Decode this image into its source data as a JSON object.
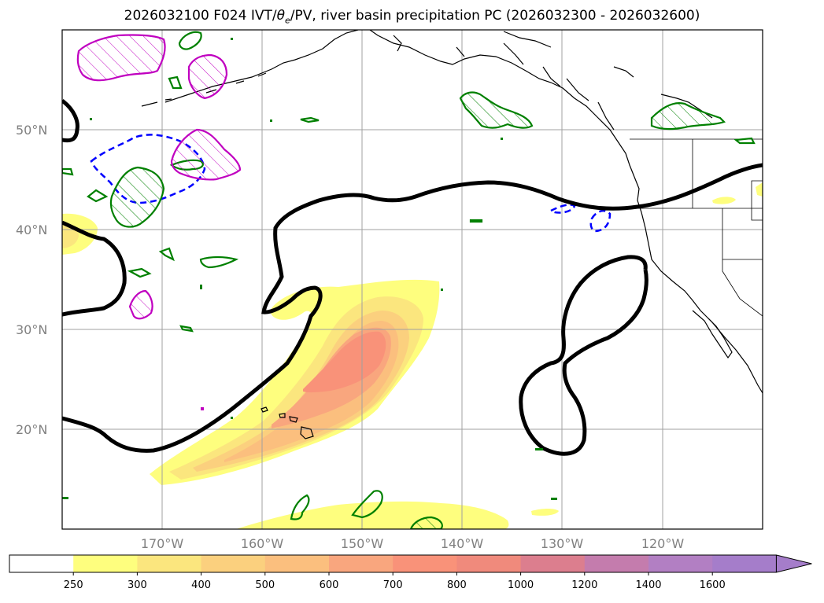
{
  "chart_data": {
    "type": "map",
    "title": "2026032100 F024 IVT/θe/PV, river basin precipitation PC (2026032300 - 2026032600)",
    "title_parts": {
      "prefix": "2026032100 F024 IVT/",
      "theta": "θ",
      "theta_sub": "e",
      "suffix": "/PV, river basin precipitation PC (2026032300 - 2026032600)"
    },
    "lon_range": [
      -180,
      -110
    ],
    "lat_range": [
      10,
      60
    ],
    "lat_ticks": [
      {
        "value": 50,
        "label": "50°N"
      },
      {
        "value": 40,
        "label": "40°N"
      },
      {
        "value": 30,
        "label": "30°N"
      },
      {
        "value": 20,
        "label": "20°N"
      }
    ],
    "lon_ticks": [
      {
        "value": -170,
        "label": "170°W"
      },
      {
        "value": -160,
        "label": "160°W"
      },
      {
        "value": -150,
        "label": "150°W"
      },
      {
        "value": -140,
        "label": "140°W"
      },
      {
        "value": -130,
        "label": "130°W"
      },
      {
        "value": -120,
        "label": "120°W"
      }
    ],
    "colorbar": {
      "levels": [
        "250",
        "300",
        "400",
        "500",
        "600",
        "700",
        "800",
        "1000",
        "1200",
        "1400",
        "1600"
      ],
      "colors": [
        "#ffffff",
        "#fefe7e",
        "#fbe67e",
        "#fbd07e",
        "#fbbf7e",
        "#f9a67e",
        "#f99279",
        "#f08a7c",
        "#dc7e8e",
        "#c47cad",
        "#b27fc3",
        "#a57dca"
      ],
      "extend": "max"
    },
    "ivt_shading": [
      {
        "level": 250,
        "color": "#fefe7e"
      },
      {
        "level": 300,
        "color": "#fbe67e"
      },
      {
        "level": 400,
        "color": "#fbd07e"
      },
      {
        "level": 500,
        "color": "#fbbf7e"
      },
      {
        "level": 600,
        "color": "#f9a67e"
      },
      {
        "level": 700,
        "color": "#f99279"
      }
    ],
    "theta_e_contour_color": "#000000",
    "pv_contour_color": "#008000",
    "pv_hatch_color": "#c000c0",
    "negative_contour_color": "#0000ff"
  }
}
